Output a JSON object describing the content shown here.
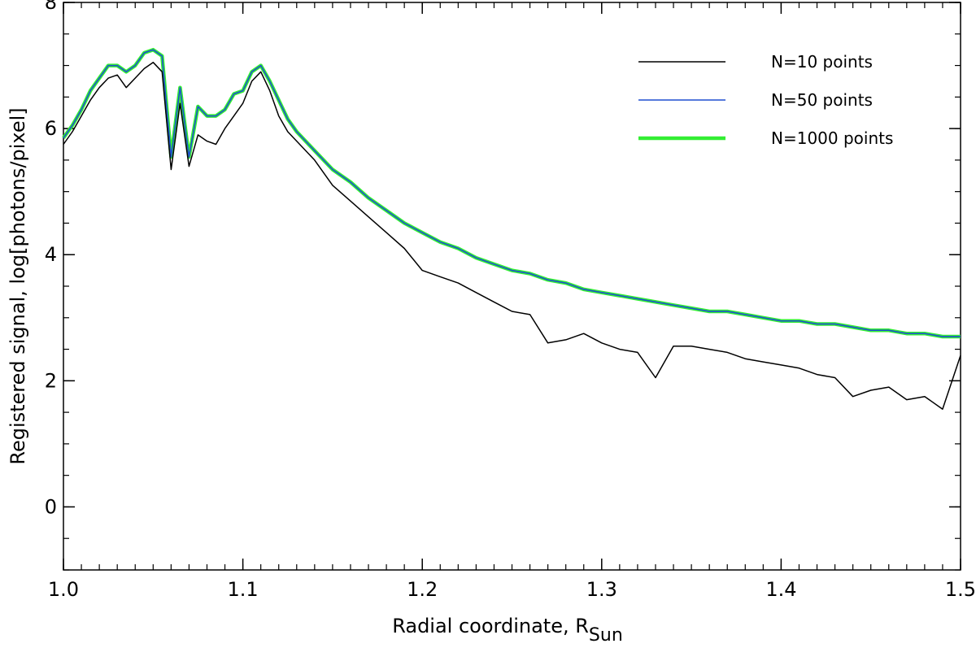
{
  "chart_data": {
    "type": "line",
    "xlabel": "Radial coordinate, R",
    "xlabel_sub": "Sun",
    "ylabel": "Registered signal, log[photons/pixel]",
    "xlim": [
      1.0,
      1.5
    ],
    "ylim": [
      -1,
      8
    ],
    "x_ticks": [
      "1.0",
      "1.1",
      "1.2",
      "1.3",
      "1.4",
      "1.5"
    ],
    "y_ticks": [
      "0",
      "2",
      "4",
      "6",
      "8"
    ],
    "grid": false,
    "legend_position": "top-right",
    "series": [
      {
        "name": "N=10 points",
        "color": "#000000",
        "x": [
          1.0,
          1.005,
          1.01,
          1.015,
          1.02,
          1.025,
          1.03,
          1.035,
          1.04,
          1.045,
          1.05,
          1.055,
          1.06,
          1.065,
          1.07,
          1.075,
          1.08,
          1.085,
          1.09,
          1.095,
          1.1,
          1.105,
          1.11,
          1.115,
          1.12,
          1.125,
          1.13,
          1.14,
          1.15,
          1.16,
          1.17,
          1.18,
          1.19,
          1.2,
          1.21,
          1.22,
          1.23,
          1.24,
          1.25,
          1.26,
          1.27,
          1.28,
          1.29,
          1.3,
          1.31,
          1.32,
          1.33,
          1.34,
          1.35,
          1.36,
          1.37,
          1.38,
          1.39,
          1.4,
          1.41,
          1.42,
          1.43,
          1.44,
          1.45,
          1.46,
          1.47,
          1.48,
          1.49,
          1.5
        ],
        "y": [
          5.75,
          5.95,
          6.2,
          6.45,
          6.65,
          6.8,
          6.85,
          6.65,
          6.8,
          6.95,
          7.05,
          6.9,
          5.35,
          6.4,
          5.4,
          5.9,
          5.8,
          5.75,
          6.0,
          6.2,
          6.4,
          6.75,
          6.9,
          6.6,
          6.2,
          5.95,
          5.8,
          5.5,
          5.1,
          4.85,
          4.6,
          4.35,
          4.1,
          3.75,
          3.65,
          3.55,
          3.4,
          3.25,
          3.1,
          3.05,
          2.6,
          2.65,
          2.75,
          2.6,
          2.5,
          2.45,
          2.05,
          2.55,
          2.55,
          2.5,
          2.45,
          2.35,
          2.3,
          2.25,
          2.2,
          2.1,
          2.05,
          1.75,
          1.85,
          1.9,
          1.7,
          1.75,
          1.55,
          2.4
        ]
      },
      {
        "name": "N=50 points",
        "color": "#1f4fd0",
        "x": [
          1.0,
          1.005,
          1.01,
          1.015,
          1.02,
          1.025,
          1.03,
          1.035,
          1.04,
          1.045,
          1.05,
          1.055,
          1.06,
          1.065,
          1.07,
          1.075,
          1.08,
          1.085,
          1.09,
          1.095,
          1.1,
          1.105,
          1.11,
          1.115,
          1.12,
          1.125,
          1.13,
          1.14,
          1.15,
          1.16,
          1.17,
          1.18,
          1.19,
          1.2,
          1.21,
          1.22,
          1.23,
          1.24,
          1.25,
          1.26,
          1.27,
          1.28,
          1.29,
          1.3,
          1.31,
          1.32,
          1.33,
          1.34,
          1.35,
          1.36,
          1.37,
          1.38,
          1.39,
          1.4,
          1.41,
          1.42,
          1.43,
          1.44,
          1.45,
          1.46,
          1.47,
          1.48,
          1.49,
          1.5
        ],
        "y": [
          5.85,
          6.05,
          6.3,
          6.6,
          6.8,
          7.0,
          7.0,
          6.9,
          7.0,
          7.2,
          7.25,
          7.15,
          5.55,
          6.65,
          5.55,
          6.35,
          6.2,
          6.2,
          6.3,
          6.55,
          6.6,
          6.9,
          7.0,
          6.75,
          6.45,
          6.15,
          5.95,
          5.65,
          5.35,
          5.15,
          4.9,
          4.7,
          4.5,
          4.35,
          4.2,
          4.1,
          3.95,
          3.85,
          3.75,
          3.7,
          3.6,
          3.55,
          3.45,
          3.4,
          3.35,
          3.3,
          3.25,
          3.2,
          3.15,
          3.1,
          3.1,
          3.05,
          3.0,
          2.95,
          2.95,
          2.9,
          2.9,
          2.85,
          2.8,
          2.8,
          2.75,
          2.75,
          2.7,
          2.7
        ]
      },
      {
        "name": "N=1000 points",
        "color": "#33ee33",
        "x": [
          1.0,
          1.005,
          1.01,
          1.015,
          1.02,
          1.025,
          1.03,
          1.035,
          1.04,
          1.045,
          1.05,
          1.055,
          1.06,
          1.065,
          1.07,
          1.075,
          1.08,
          1.085,
          1.09,
          1.095,
          1.1,
          1.105,
          1.11,
          1.115,
          1.12,
          1.125,
          1.13,
          1.14,
          1.15,
          1.16,
          1.17,
          1.18,
          1.19,
          1.2,
          1.21,
          1.22,
          1.23,
          1.24,
          1.25,
          1.26,
          1.27,
          1.28,
          1.29,
          1.3,
          1.31,
          1.32,
          1.33,
          1.34,
          1.35,
          1.36,
          1.37,
          1.38,
          1.39,
          1.4,
          1.41,
          1.42,
          1.43,
          1.44,
          1.45,
          1.46,
          1.47,
          1.48,
          1.49,
          1.5
        ],
        "y": [
          5.85,
          6.05,
          6.3,
          6.6,
          6.8,
          7.0,
          7.0,
          6.9,
          7.0,
          7.2,
          7.25,
          7.15,
          5.55,
          6.65,
          5.55,
          6.35,
          6.2,
          6.2,
          6.3,
          6.55,
          6.6,
          6.9,
          7.0,
          6.75,
          6.45,
          6.15,
          5.95,
          5.65,
          5.35,
          5.15,
          4.9,
          4.7,
          4.5,
          4.35,
          4.2,
          4.1,
          3.95,
          3.85,
          3.75,
          3.7,
          3.6,
          3.55,
          3.45,
          3.4,
          3.35,
          3.3,
          3.25,
          3.2,
          3.15,
          3.1,
          3.1,
          3.05,
          3.0,
          2.95,
          2.95,
          2.9,
          2.9,
          2.85,
          2.8,
          2.8,
          2.75,
          2.75,
          2.7,
          2.7
        ]
      }
    ]
  }
}
